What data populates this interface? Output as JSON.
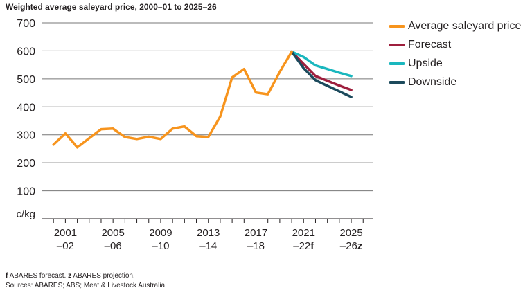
{
  "title": "Weighted average saleyard price, 2000–01 to 2025–26",
  "chart_data": {
    "type": "line",
    "title": "Weighted average saleyard price, 2000–01 to 2025–26",
    "ylabel": "c/kg",
    "ylim": [
      0,
      700
    ],
    "yticks": [
      100,
      200,
      300,
      400,
      500,
      600,
      700
    ],
    "grid": true,
    "legend": "right",
    "x_ticks": [
      {
        "year": 2001,
        "line1": "2001",
        "line2": "–02",
        "suffix": ""
      },
      {
        "year": 2005,
        "line1": "2005",
        "line2": "–06",
        "suffix": ""
      },
      {
        "year": 2009,
        "line1": "2009",
        "line2": "–10",
        "suffix": ""
      },
      {
        "year": 2013,
        "line1": "2013",
        "line2": "–14",
        "suffix": ""
      },
      {
        "year": 2017,
        "line1": "2017",
        "line2": "–18",
        "suffix": ""
      },
      {
        "year": 2021,
        "line1": "2021",
        "line2": "–22",
        "suffix": "f"
      },
      {
        "year": 2025,
        "line1": "2025",
        "line2": "–26",
        "suffix": "z"
      }
    ],
    "series": [
      {
        "name": "Average saleyard price",
        "color": "#f7941d",
        "x": [
          2000,
          2001,
          2002,
          2003,
          2004,
          2005,
          2006,
          2007,
          2008,
          2009,
          2010,
          2011,
          2012,
          2013,
          2014,
          2015,
          2016,
          2017,
          2018,
          2019,
          2020
        ],
        "y": [
          265,
          305,
          255,
          288,
          320,
          322,
          292,
          285,
          293,
          285,
          322,
          330,
          295,
          292,
          365,
          505,
          535,
          451,
          445,
          525,
          597
        ]
      },
      {
        "name": "Forecast",
        "color": "#9e1f3d",
        "x": [
          2020,
          2021,
          2022,
          2023,
          2024,
          2025
        ],
        "y": [
          597,
          553,
          510,
          493,
          476,
          460
        ]
      },
      {
        "name": "Upside",
        "color": "#1ab7be",
        "x": [
          2020,
          2021,
          2022,
          2023,
          2024,
          2025
        ],
        "y": [
          597,
          578,
          548,
          535,
          522,
          510
        ]
      },
      {
        "name": "Downside",
        "color": "#1c4a5c",
        "x": [
          2020,
          2021,
          2022,
          2023,
          2024,
          2025
        ],
        "y": [
          597,
          538,
          495,
          475,
          455,
          435
        ]
      }
    ]
  },
  "footnotes": {
    "f_key": "f",
    "f_text": " ABARES forecast. ",
    "z_key": "z",
    "z_text": " ABARES projection.",
    "sources": "Sources: ABARES; ABS; Meat & Livestock Australia"
  }
}
